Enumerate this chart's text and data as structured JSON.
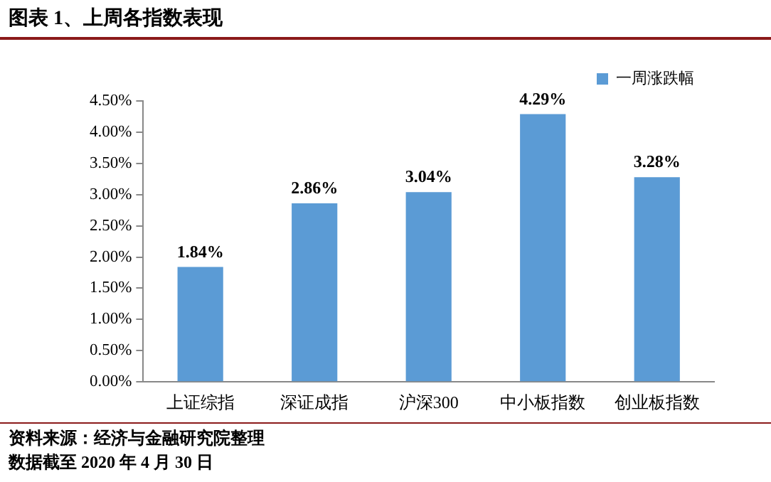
{
  "chart_data": {
    "type": "bar",
    "title": "图表 1、上周各指数表现",
    "categories": [
      "上证综指",
      "深证成指",
      "沪深300",
      "中小板指数",
      "创业板指数"
    ],
    "series": [
      {
        "name": "一周涨跌幅",
        "color": "#5b9bd5",
        "values": [
          1.84,
          2.86,
          3.04,
          4.29,
          3.28
        ],
        "value_labels": [
          "1.84%",
          "2.86%",
          "3.04%",
          "4.29%",
          "3.28%"
        ]
      }
    ],
    "ylim": [
      0,
      4.5
    ],
    "yticks": [
      {
        "value": 0,
        "label": "0.00%"
      },
      {
        "value": 0.5,
        "label": "0.50%"
      },
      {
        "value": 1,
        "label": "1.00%"
      },
      {
        "value": 1.5,
        "label": "1.50%"
      },
      {
        "value": 2,
        "label": "2.00%"
      },
      {
        "value": 2.5,
        "label": "2.50%"
      },
      {
        "value": 3,
        "label": "3.00%"
      },
      {
        "value": 3.5,
        "label": "3.50%"
      },
      {
        "value": 4,
        "label": "4.00%"
      },
      {
        "value": 4.5,
        "label": "4.50%"
      }
    ],
    "grid": false,
    "legend": "top right",
    "annotations": [
      "资料来源：经济与金融研究院整理",
      "数据截至 2020 年 4 月 30 日"
    ]
  }
}
